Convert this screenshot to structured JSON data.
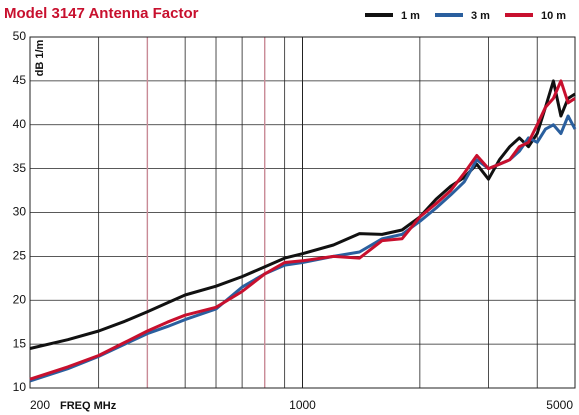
{
  "chart_data": {
    "type": "line",
    "title": "Model 3147 Antenna Factor",
    "xlabel": "FREQ MHz",
    "ylabel": "dB 1/m",
    "xscale": "log",
    "xlim": [
      200,
      5000
    ],
    "xticks": [
      200,
      1000,
      5000
    ],
    "xgrid": [
      300,
      400,
      500,
      600,
      700,
      800,
      900,
      2000,
      3000,
      4000
    ],
    "xgrid_highlight": [
      400,
      800
    ],
    "highlight_color": "#c98a96",
    "ylim": [
      10,
      50
    ],
    "yticks": [
      10,
      15,
      20,
      25,
      30,
      35,
      40,
      45,
      50
    ],
    "grid": true,
    "legend": "top-right",
    "x": [
      200,
      250,
      300,
      350,
      400,
      450,
      500,
      600,
      700,
      800,
      900,
      1000,
      1200,
      1400,
      1600,
      1800,
      2000,
      2200,
      2400,
      2600,
      2800,
      3000,
      3200,
      3400,
      3600,
      3800,
      4000,
      4200,
      4400,
      4600,
      4800,
      5000
    ],
    "series": [
      {
        "name": "1 m",
        "color": "#111111",
        "values": [
          14.5,
          15.5,
          16.5,
          17.6,
          18.7,
          19.7,
          20.6,
          21.6,
          22.7,
          23.8,
          24.8,
          25.3,
          26.3,
          27.6,
          27.5,
          28.0,
          29.5,
          31.5,
          33.0,
          34.0,
          35.5,
          33.8,
          36.0,
          37.5,
          38.5,
          37.5,
          39.0,
          42.0,
          45.0,
          41.0,
          43.0,
          43.5
        ]
      },
      {
        "name": "3 m",
        "color": "#2a5f9e",
        "values": [
          10.8,
          12.2,
          13.6,
          15.0,
          16.2,
          17.0,
          17.8,
          19.0,
          21.5,
          23.0,
          24.0,
          24.3,
          25.0,
          25.5,
          27.0,
          27.5,
          29.0,
          30.5,
          32.0,
          33.5,
          36.0,
          35.0,
          35.5,
          36.0,
          37.0,
          38.5,
          38.0,
          39.5,
          40.0,
          39.0,
          41.0,
          39.5
        ]
      },
      {
        "name": "10 m",
        "color": "#c8102e",
        "values": [
          11.0,
          12.4,
          13.7,
          15.2,
          16.5,
          17.5,
          18.3,
          19.2,
          21.0,
          23.0,
          24.3,
          24.5,
          25.0,
          24.8,
          26.8,
          27.0,
          29.5,
          31.0,
          32.5,
          34.5,
          36.5,
          35.0,
          35.5,
          36.0,
          37.5,
          38.0,
          40.0,
          42.0,
          43.0,
          45.0,
          42.5,
          43.0
        ]
      }
    ]
  }
}
